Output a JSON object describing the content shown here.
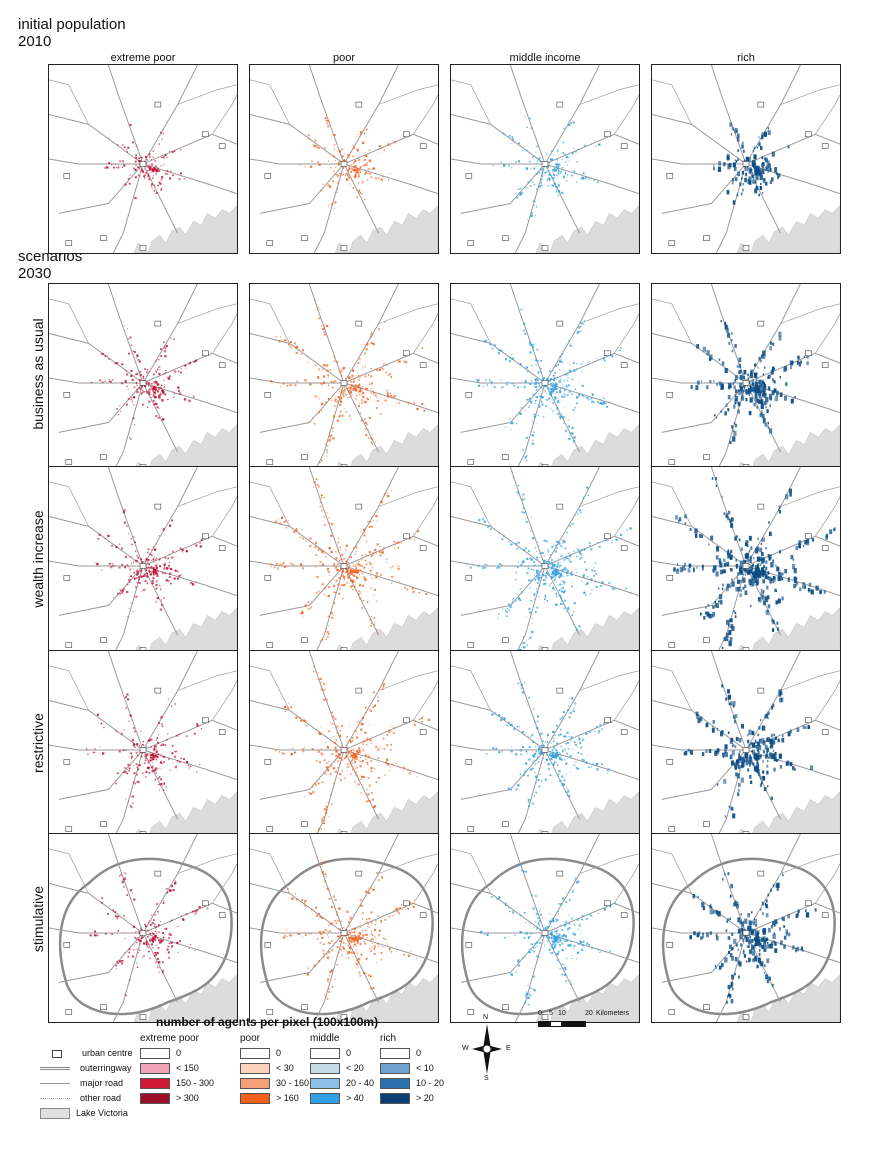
{
  "heading_initial": {
    "line1": "initial population",
    "line2": "2010"
  },
  "heading_scenarios": {
    "line1": "scenarios",
    "line2": "2030"
  },
  "columns": [
    "extreme poor",
    "poor",
    "middle income",
    "rich"
  ],
  "rows": [
    "business as usual",
    "wealth increase",
    "restrictive",
    "stimulative"
  ],
  "colors": {
    "extreme_poor": "#c0163a",
    "poor": "#f2682a",
    "middle": "#3aa3e0",
    "rich": "#0d4d85",
    "lake": "#dcdcdc",
    "road": "#9a9a9a"
  },
  "legend": {
    "title": "number of agents per pixel (100x100m)",
    "groups": [
      {
        "name": "extreme poor",
        "items": [
          {
            "label": "0",
            "color": "#ffffff"
          },
          {
            "label": "< 150",
            "color": "#f0a3b5"
          },
          {
            "label": "150 - 300",
            "color": "#d01935"
          },
          {
            "label": "> 300",
            "color": "#9b0e2b"
          }
        ]
      },
      {
        "name": "poor",
        "items": [
          {
            "label": "0",
            "color": "#ffffff"
          },
          {
            "label": "< 30",
            "color": "#fbd3bf"
          },
          {
            "label": "30 - 160",
            "color": "#f5a07a"
          },
          {
            "label": "> 160",
            "color": "#f2601c"
          }
        ]
      },
      {
        "name": "middle",
        "items": [
          {
            "label": "0",
            "color": "#ffffff"
          },
          {
            "label": "< 20",
            "color": "#c6dae8"
          },
          {
            "label": "20 - 40",
            "color": "#8cc0e4"
          },
          {
            "label": "> 40",
            "color": "#2f9fe6"
          }
        ]
      },
      {
        "name": "rich",
        "items": [
          {
            "label": "0",
            "color": "#ffffff"
          },
          {
            "label": "< 10",
            "color": "#6ea3cf"
          },
          {
            "label": "10 - 20",
            "color": "#2b6fac"
          },
          {
            "label": "> 20",
            "color": "#0b3e72"
          }
        ]
      }
    ],
    "key": [
      {
        "symbol": "urban-centre",
        "label": "urban centre"
      },
      {
        "symbol": "outerringway",
        "label": "outerringway"
      },
      {
        "symbol": "major-road",
        "label": "major road"
      },
      {
        "symbol": "other-road",
        "label": "other road"
      },
      {
        "symbol": "lake",
        "label": "Lake Victoria"
      }
    ],
    "compass": {
      "n": "N",
      "s": "S",
      "e": "E",
      "w": "W"
    },
    "scalebar": {
      "ticks": [
        "0",
        "5",
        "10",
        "20"
      ],
      "unit": "Kilometers"
    }
  }
}
